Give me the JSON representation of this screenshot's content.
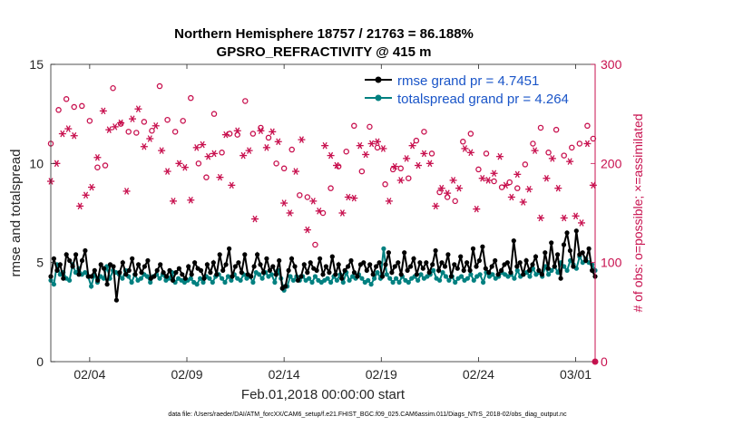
{
  "colors": {
    "rmse": "#000000",
    "spread": "#008080",
    "obs": "#c8114f",
    "legend_text": "#1a55c8"
  },
  "chart_data": {
    "type": "line",
    "title_line1": "Northern Hemisphere 18757 / 21763 = 86.188%",
    "title_line2": "GPSRO_REFRACTIVITY @ 415 m",
    "xlabel": "Feb.01,2018 00:00:00 start",
    "ylabel": "rmse and totalspread",
    "y2label": "# of obs: o=possible; ×=assimilated",
    "footnote": "data file: /Users/raeder/DAI/ATM_forcXX/CAM6_setup/f.e21.FHIST_BGC.f09_025.CAM6assim.011/Diags_NTrS_2018-02/obs_diag_output.nc",
    "xlim": [
      1,
      29
    ],
    "ylim": [
      0,
      15
    ],
    "y2lim": [
      0,
      300
    ],
    "xticks": [
      3,
      8,
      13,
      18,
      23,
      28
    ],
    "xtick_labels": [
      "02/04",
      "02/09",
      "02/14",
      "02/19",
      "02/24",
      "03/01"
    ],
    "yticks": [
      0,
      5,
      10,
      15
    ],
    "ytick_labels": [
      "0",
      "5",
      "10",
      "15"
    ],
    "y2ticks": [
      0,
      100,
      200,
      300
    ],
    "y2tick_labels": [
      "0",
      "100",
      "200",
      "300"
    ],
    "legend": [
      "rmse grand pr = 4.7451",
      "totalspread grand pr = 4.264"
    ],
    "legend_position": "top-right",
    "series": [
      {
        "name": "rmse grand pr = 4.7451",
        "axis": "left",
        "values": [
          4.3,
          5.2,
          4.6,
          4.9,
          4.2,
          5.4,
          5.1,
          4.8,
          5.4,
          4.4,
          5.1,
          5.6,
          4.3,
          4.3,
          4.6,
          4.1,
          4.9,
          4.7,
          3.9,
          4.9,
          4.8,
          3.1,
          4.5,
          5.0,
          4.4,
          4.6,
          5.2,
          4.4,
          4.9,
          4.5,
          4.8,
          5.1,
          4.2,
          4.3,
          4.6,
          4.9,
          4.5,
          4.3,
          4.6,
          4.1,
          4.5,
          4.7,
          4.4,
          4.2,
          4.8,
          4.4,
          5.0,
          4.7,
          4.6,
          4.2,
          4.9,
          4.5,
          5.0,
          4.4,
          5.4,
          4.6,
          4.9,
          5.7,
          4.3,
          4.8,
          5.0,
          4.5,
          5.4,
          4.4,
          4.3,
          4.8,
          5.4,
          4.9,
          4.5,
          5.2,
          4.6,
          4.8,
          4.4,
          5.1,
          3.7,
          3.8,
          4.6,
          5.2,
          4.8,
          4.1,
          4.3,
          4.9,
          4.5,
          5.0,
          4.7,
          4.6,
          5.2,
          4.4,
          4.8,
          4.5,
          5.3,
          4.4,
          4.9,
          4.2,
          4.6,
          4.8,
          5.1,
          4.5,
          4.3,
          4.9,
          5.0,
          4.6,
          4.9,
          4.4,
          4.8,
          5.0,
          4.3,
          4.9,
          5.5,
          4.5,
          4.8,
          5.0,
          4.4,
          5.5,
          4.6,
          4.8,
          5.2,
          4.4,
          5.0,
          4.7,
          5.0,
          4.5,
          4.9,
          5.6,
          4.6,
          5.0,
          4.8,
          5.4,
          4.3,
          4.9,
          4.7,
          5.3,
          4.6,
          5.0,
          4.6,
          5.7,
          4.8,
          5.1,
          5.8,
          4.7,
          4.5,
          4.8,
          5.1,
          4.4,
          4.6,
          4.9,
          5.0,
          4.5,
          6.1,
          4.8,
          5.0,
          4.4,
          5.1,
          4.6,
          4.9,
          5.3,
          4.6,
          4.4,
          5.5,
          4.7,
          6.0,
          4.8,
          5.4,
          4.2,
          5.9,
          6.5,
          5.6,
          4.8,
          6.6,
          5.4,
          5.5,
          5.1,
          5.7,
          4.6,
          4.3
        ]
      },
      {
        "name": "totalspread grand pr = 4.264",
        "axis": "left",
        "values": [
          4.1,
          3.9,
          4.9,
          4.4,
          4.5,
          4.2,
          4.1,
          4.9,
          4.5,
          4.7,
          4.4,
          4.5,
          4.3,
          3.8,
          4.4,
          4.0,
          4.3,
          4.2,
          4.8,
          4.2,
          4.6,
          4.5,
          4.4,
          4.2,
          4.6,
          4.3,
          4.0,
          4.4,
          4.1,
          4.2,
          4.4,
          4.3,
          4.0,
          4.3,
          4.4,
          4.2,
          4.4,
          4.1,
          4.2,
          4.5,
          4.0,
          4.2,
          4.1,
          4.0,
          4.1,
          4.2,
          4.0,
          3.9,
          4.2,
          4.0,
          4.3,
          4.2,
          4.0,
          4.3,
          4.4,
          4.2,
          4.0,
          4.3,
          4.1,
          4.4,
          4.2,
          4.1,
          4.4,
          4.2,
          4.3,
          4.0,
          4.5,
          4.4,
          4.2,
          4.5,
          4.3,
          4.4,
          4.0,
          4.6,
          4.2,
          3.6,
          3.8,
          4.3,
          4.1,
          4.3,
          4.1,
          4.3,
          4.1,
          4.2,
          4.0,
          4.3,
          4.1,
          4.0,
          4.1,
          4.2,
          4.0,
          4.3,
          4.1,
          4.4,
          4.0,
          4.5,
          4.1,
          4.3,
          4.2,
          4.4,
          4.2,
          4.0,
          4.1,
          3.9,
          4.2,
          4.5,
          4.2,
          5.7,
          4.4,
          4.2,
          4.0,
          4.2,
          4.0,
          4.3,
          4.1,
          4.0,
          4.2,
          4.3,
          4.1,
          4.4,
          4.2,
          4.3,
          4.4,
          4.6,
          4.2,
          4.1,
          4.5,
          4.3,
          4.1,
          4.3,
          4.0,
          4.2,
          4.3,
          4.1,
          4.2,
          4.4,
          4.1,
          4.3,
          4.4,
          4.0,
          4.5,
          4.3,
          4.4,
          4.2,
          4.3,
          4.5,
          4.4,
          4.3,
          4.4,
          4.2,
          4.6,
          4.3,
          4.4,
          4.5,
          4.3,
          4.7,
          4.4,
          4.5,
          4.3,
          4.8,
          4.4,
          4.6,
          4.8,
          4.5,
          5.0,
          4.8,
          4.6,
          5.1,
          4.9,
          4.7,
          5.3,
          5.0,
          5.2,
          5.0,
          4.9,
          4.6
        ]
      },
      {
        "name": "possible",
        "axis": "right",
        "marker": "o",
        "x": [
          1.0,
          1.4,
          1.8,
          2.2,
          2.6,
          3.0,
          3.4,
          3.8,
          4.2,
          4.6,
          5.0,
          5.4,
          5.8,
          6.2,
          6.6,
          7.0,
          7.4,
          7.8,
          8.2,
          8.6,
          9.0,
          9.4,
          9.8,
          10.2,
          10.6,
          11.0,
          11.4,
          11.8,
          12.2,
          12.6,
          13.0,
          13.4,
          13.8,
          14.2,
          14.6,
          15.0,
          15.4,
          15.8,
          16.2,
          16.6,
          17.0,
          17.4,
          17.8,
          18.2,
          18.6,
          19.0,
          19.4,
          19.8,
          20.2,
          20.6,
          21.0,
          21.4,
          21.8,
          22.2,
          22.6,
          23.0,
          23.4,
          23.8,
          24.2,
          24.6,
          25.0,
          25.4,
          25.8,
          26.2,
          26.6,
          27.0,
          27.4,
          27.8,
          28.2,
          28.6,
          28.9
        ],
        "values": [
          220,
          254,
          265,
          257,
          258,
          243,
          196,
          198,
          276,
          240,
          232,
          231,
          242,
          233,
          278,
          244,
          232,
          243,
          266,
          200,
          186,
          250,
          211,
          230,
          229,
          263,
          230,
          236,
          226,
          200,
          195,
          214,
          168,
          166,
          118,
          150,
          175,
          197,
          212,
          238,
          192,
          237,
          216,
          179,
          194,
          195,
          185,
          223,
          232,
          210,
          171,
          166,
          162,
          222,
          230,
          194,
          210,
          182,
          176,
          181,
          175,
          199,
          220,
          236,
          211,
          234,
          208,
          216,
          220,
          238,
          225
        ]
      },
      {
        "name": "assimilated",
        "axis": "right",
        "marker": "*",
        "x": [
          1.0,
          1.3,
          1.6,
          1.9,
          2.2,
          2.5,
          2.8,
          3.1,
          3.4,
          3.7,
          4.0,
          4.3,
          4.6,
          4.9,
          5.2,
          5.5,
          5.8,
          6.1,
          6.4,
          6.7,
          7.0,
          7.3,
          7.6,
          7.9,
          8.2,
          8.5,
          8.8,
          9.1,
          9.4,
          9.7,
          10.0,
          10.3,
          10.6,
          10.9,
          11.2,
          11.5,
          11.8,
          12.1,
          12.4,
          12.7,
          13.0,
          13.3,
          13.6,
          13.9,
          14.2,
          14.5,
          14.8,
          15.1,
          15.4,
          15.7,
          16.0,
          16.3,
          16.6,
          16.9,
          17.2,
          17.5,
          17.8,
          18.1,
          18.4,
          18.7,
          19.0,
          19.3,
          19.6,
          19.9,
          20.2,
          20.5,
          20.8,
          21.1,
          21.4,
          21.7,
          22.0,
          22.3,
          22.6,
          22.9,
          23.2,
          23.5,
          23.8,
          24.1,
          24.4,
          24.7,
          25.0,
          25.3,
          25.6,
          25.9,
          26.2,
          26.5,
          26.8,
          27.1,
          27.4,
          27.7,
          28.0,
          28.3,
          28.6,
          28.9
        ],
        "values": [
          182,
          200,
          230,
          235,
          228,
          157,
          168,
          176,
          206,
          253,
          234,
          237,
          241,
          172,
          245,
          255,
          217,
          225,
          238,
          213,
          192,
          162,
          200,
          196,
          163,
          216,
          219,
          207,
          210,
          186,
          229,
          178,
          233,
          208,
          213,
          144,
          233,
          216,
          232,
          222,
          160,
          150,
          192,
          224,
          133,
          162,
          152,
          218,
          208,
          198,
          150,
          166,
          165,
          218,
          209,
          220,
          222,
          215,
          162,
          197,
          183,
          205,
          218,
          198,
          210,
          200,
          157,
          175,
          170,
          183,
          175,
          215,
          211,
          154,
          185,
          183,
          190,
          207,
          178,
          166,
          189,
          161,
          174,
          213,
          145,
          185,
          205,
          175,
          145,
          202,
          147,
          140,
          220,
          178
        ]
      }
    ]
  }
}
